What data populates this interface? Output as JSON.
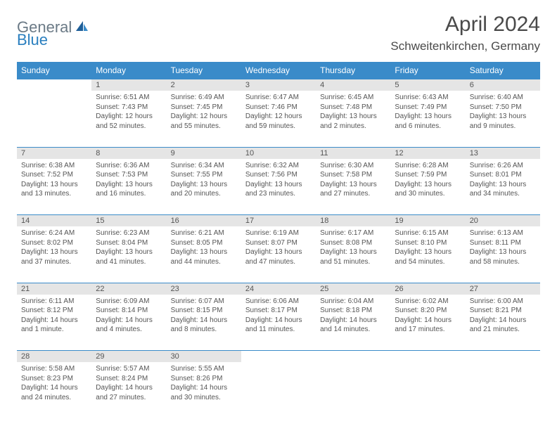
{
  "logo": {
    "text1": "General",
    "text2": "Blue"
  },
  "title": "April 2024",
  "location": "Schweitenkirchen, Germany",
  "colors": {
    "header_bg": "#3a8bc9",
    "header_text": "#ffffff",
    "daynum_bg": "#e5e5e5",
    "border": "#3a8bc9",
    "text": "#555555",
    "logo_gray": "#6b7a86",
    "logo_blue": "#2a7fbf"
  },
  "day_headers": [
    "Sunday",
    "Monday",
    "Tuesday",
    "Wednesday",
    "Thursday",
    "Friday",
    "Saturday"
  ],
  "weeks": [
    [
      null,
      {
        "n": "1",
        "sr": "Sunrise: 6:51 AM",
        "ss": "Sunset: 7:43 PM",
        "dl": "Daylight: 12 hours and 52 minutes."
      },
      {
        "n": "2",
        "sr": "Sunrise: 6:49 AM",
        "ss": "Sunset: 7:45 PM",
        "dl": "Daylight: 12 hours and 55 minutes."
      },
      {
        "n": "3",
        "sr": "Sunrise: 6:47 AM",
        "ss": "Sunset: 7:46 PM",
        "dl": "Daylight: 12 hours and 59 minutes."
      },
      {
        "n": "4",
        "sr": "Sunrise: 6:45 AM",
        "ss": "Sunset: 7:48 PM",
        "dl": "Daylight: 13 hours and 2 minutes."
      },
      {
        "n": "5",
        "sr": "Sunrise: 6:43 AM",
        "ss": "Sunset: 7:49 PM",
        "dl": "Daylight: 13 hours and 6 minutes."
      },
      {
        "n": "6",
        "sr": "Sunrise: 6:40 AM",
        "ss": "Sunset: 7:50 PM",
        "dl": "Daylight: 13 hours and 9 minutes."
      }
    ],
    [
      {
        "n": "7",
        "sr": "Sunrise: 6:38 AM",
        "ss": "Sunset: 7:52 PM",
        "dl": "Daylight: 13 hours and 13 minutes."
      },
      {
        "n": "8",
        "sr": "Sunrise: 6:36 AM",
        "ss": "Sunset: 7:53 PM",
        "dl": "Daylight: 13 hours and 16 minutes."
      },
      {
        "n": "9",
        "sr": "Sunrise: 6:34 AM",
        "ss": "Sunset: 7:55 PM",
        "dl": "Daylight: 13 hours and 20 minutes."
      },
      {
        "n": "10",
        "sr": "Sunrise: 6:32 AM",
        "ss": "Sunset: 7:56 PM",
        "dl": "Daylight: 13 hours and 23 minutes."
      },
      {
        "n": "11",
        "sr": "Sunrise: 6:30 AM",
        "ss": "Sunset: 7:58 PM",
        "dl": "Daylight: 13 hours and 27 minutes."
      },
      {
        "n": "12",
        "sr": "Sunrise: 6:28 AM",
        "ss": "Sunset: 7:59 PM",
        "dl": "Daylight: 13 hours and 30 minutes."
      },
      {
        "n": "13",
        "sr": "Sunrise: 6:26 AM",
        "ss": "Sunset: 8:01 PM",
        "dl": "Daylight: 13 hours and 34 minutes."
      }
    ],
    [
      {
        "n": "14",
        "sr": "Sunrise: 6:24 AM",
        "ss": "Sunset: 8:02 PM",
        "dl": "Daylight: 13 hours and 37 minutes."
      },
      {
        "n": "15",
        "sr": "Sunrise: 6:23 AM",
        "ss": "Sunset: 8:04 PM",
        "dl": "Daylight: 13 hours and 41 minutes."
      },
      {
        "n": "16",
        "sr": "Sunrise: 6:21 AM",
        "ss": "Sunset: 8:05 PM",
        "dl": "Daylight: 13 hours and 44 minutes."
      },
      {
        "n": "17",
        "sr": "Sunrise: 6:19 AM",
        "ss": "Sunset: 8:07 PM",
        "dl": "Daylight: 13 hours and 47 minutes."
      },
      {
        "n": "18",
        "sr": "Sunrise: 6:17 AM",
        "ss": "Sunset: 8:08 PM",
        "dl": "Daylight: 13 hours and 51 minutes."
      },
      {
        "n": "19",
        "sr": "Sunrise: 6:15 AM",
        "ss": "Sunset: 8:10 PM",
        "dl": "Daylight: 13 hours and 54 minutes."
      },
      {
        "n": "20",
        "sr": "Sunrise: 6:13 AM",
        "ss": "Sunset: 8:11 PM",
        "dl": "Daylight: 13 hours and 58 minutes."
      }
    ],
    [
      {
        "n": "21",
        "sr": "Sunrise: 6:11 AM",
        "ss": "Sunset: 8:12 PM",
        "dl": "Daylight: 14 hours and 1 minute."
      },
      {
        "n": "22",
        "sr": "Sunrise: 6:09 AM",
        "ss": "Sunset: 8:14 PM",
        "dl": "Daylight: 14 hours and 4 minutes."
      },
      {
        "n": "23",
        "sr": "Sunrise: 6:07 AM",
        "ss": "Sunset: 8:15 PM",
        "dl": "Daylight: 14 hours and 8 minutes."
      },
      {
        "n": "24",
        "sr": "Sunrise: 6:06 AM",
        "ss": "Sunset: 8:17 PM",
        "dl": "Daylight: 14 hours and 11 minutes."
      },
      {
        "n": "25",
        "sr": "Sunrise: 6:04 AM",
        "ss": "Sunset: 8:18 PM",
        "dl": "Daylight: 14 hours and 14 minutes."
      },
      {
        "n": "26",
        "sr": "Sunrise: 6:02 AM",
        "ss": "Sunset: 8:20 PM",
        "dl": "Daylight: 14 hours and 17 minutes."
      },
      {
        "n": "27",
        "sr": "Sunrise: 6:00 AM",
        "ss": "Sunset: 8:21 PM",
        "dl": "Daylight: 14 hours and 21 minutes."
      }
    ],
    [
      {
        "n": "28",
        "sr": "Sunrise: 5:58 AM",
        "ss": "Sunset: 8:23 PM",
        "dl": "Daylight: 14 hours and 24 minutes."
      },
      {
        "n": "29",
        "sr": "Sunrise: 5:57 AM",
        "ss": "Sunset: 8:24 PM",
        "dl": "Daylight: 14 hours and 27 minutes."
      },
      {
        "n": "30",
        "sr": "Sunrise: 5:55 AM",
        "ss": "Sunset: 8:26 PM",
        "dl": "Daylight: 14 hours and 30 minutes."
      },
      null,
      null,
      null,
      null
    ]
  ]
}
